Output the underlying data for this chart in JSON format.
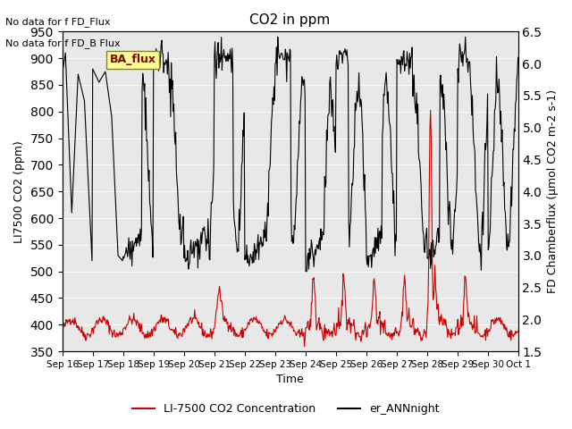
{
  "title": "CO2 in ppm",
  "ylabel_left": "LI7500 CO2 (ppm)",
  "ylabel_right": "FD Chamberflux (μmol CO2 m-2 s-1)",
  "xlabel": "Time",
  "ylim_left": [
    350,
    950
  ],
  "ylim_right": [
    1.5,
    6.5
  ],
  "yticks_left": [
    350,
    400,
    450,
    500,
    550,
    600,
    650,
    700,
    750,
    800,
    850,
    900,
    950
  ],
  "yticks_right": [
    1.5,
    2.0,
    2.5,
    3.0,
    3.5,
    4.0,
    4.5,
    5.0,
    5.5,
    6.0,
    6.5
  ],
  "xtick_labels": [
    "Sep 16",
    "Sep 17",
    "Sep 18",
    "Sep 19",
    "Sep 20",
    "Sep 21",
    "Sep 22",
    "Sep 23",
    "Sep 24",
    "Sep 25",
    "Sep 26",
    "Sep 27",
    "Sep 28",
    "Sep 29",
    "Sep 30",
    "Oct 1"
  ],
  "no_data_text1": "No data for f FD_Flux",
  "no_data_text2": "No data for f FD_B Flux",
  "ba_flux_label": "BA_flux",
  "legend_red": "LI-7500 CO2 Concentration",
  "legend_black": "er_ANNnight",
  "red_color": "#cc0000",
  "black_color": "#000000",
  "bg_color": "#e8e8e8",
  "fig_bg_color": "#ffffff",
  "ba_flux_bg": "#ffff99",
  "ba_flux_text_color": "#8b0000"
}
